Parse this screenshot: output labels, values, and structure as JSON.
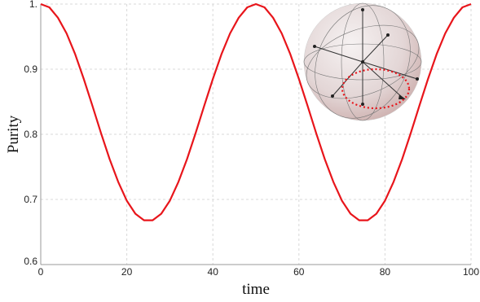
{
  "chart_data": {
    "type": "line",
    "x_label": "time",
    "y_label": "Purity",
    "x": [
      0,
      2,
      4,
      6,
      8,
      10,
      12,
      14,
      16,
      18,
      20,
      22,
      24,
      26,
      28,
      30,
      32,
      34,
      36,
      38,
      40,
      42,
      44,
      46,
      48,
      50,
      52,
      54,
      56,
      58,
      60,
      62,
      64,
      66,
      68,
      70,
      72,
      74,
      76,
      78,
      80,
      82,
      84,
      86,
      88,
      90,
      92,
      94,
      96,
      98,
      100
    ],
    "series": [
      {
        "color": "#e8151b",
        "values": [
          1,
          0.995,
          0.979,
          0.955,
          0.923,
          0.885,
          0.844,
          0.802,
          0.762,
          0.727,
          0.698,
          0.678,
          0.668,
          0.668,
          0.678,
          0.698,
          0.727,
          0.762,
          0.802,
          0.844,
          0.885,
          0.923,
          0.955,
          0.979,
          0.995,
          1,
          0.995,
          0.979,
          0.955,
          0.923,
          0.885,
          0.844,
          0.802,
          0.762,
          0.727,
          0.698,
          0.678,
          0.668,
          0.668,
          0.678,
          0.698,
          0.727,
          0.762,
          0.802,
          0.844,
          0.885,
          0.923,
          0.955,
          0.979,
          0.995,
          1
        ]
      }
    ],
    "xlim": [
      0,
      100
    ],
    "xticks": [
      0,
      20,
      40,
      60,
      80,
      100
    ],
    "ylim": [
      0.6,
      1
    ],
    "yticks": [
      0.6,
      0.7,
      0.8,
      0.9,
      {
        "value": 1,
        "label": "1."
      }
    ],
    "grid": true
  }
}
